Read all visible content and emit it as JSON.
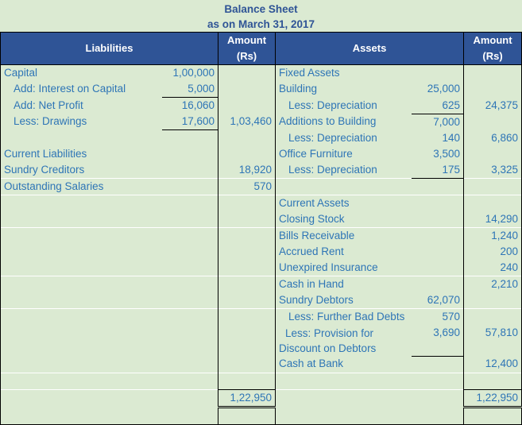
{
  "title": "Balance Sheet",
  "subtitle": "as on March 31, 2017",
  "headers": {
    "liabilities": "Liabilities",
    "liab_amount": [
      "Amount",
      "(Rs)"
    ],
    "assets": "Assets",
    "asset_amount": [
      "Amount",
      "(Rs)"
    ]
  },
  "rows": [
    {
      "l": "Capital",
      "ls": "1,00,000",
      "la": "",
      "a": "Fixed Assets",
      "as": "",
      "aa": ""
    },
    {
      "l": "Add: Interest on Capital",
      "li": true,
      "ls": "5,000",
      "la": "",
      "a": "Building",
      "as": "25,000",
      "aa": ""
    },
    {
      "l": "Add: Net Profit",
      "li": true,
      "ls": "16,060",
      "la": "",
      "a": "Less: Depreciation",
      "ai": true,
      "as": "625",
      "aa": "24,375"
    },
    {
      "l": "Less: Drawings",
      "li": true,
      "ls": "17,600",
      "la": "1,03,460",
      "a": "Additions to Building",
      "as": "7,000",
      "aa": ""
    },
    {
      "l": "",
      "ls": "",
      "la": "",
      "a": "Less: Depreciation",
      "ai": true,
      "as": "140",
      "aa": "6,860"
    },
    {
      "l": "Current Liabilities",
      "ls": "",
      "la": "",
      "a": "Office Furniture",
      "as": "3,500",
      "aa": ""
    },
    {
      "l": "Sundry Creditors",
      "ls": "",
      "la": "18,920",
      "a": "Less: Depreciation",
      "ai": true,
      "as": "175",
      "aa": "3,325"
    },
    {
      "l": "Outstanding Salaries",
      "ls": "",
      "la": "570",
      "a": "",
      "as": "",
      "aa": ""
    },
    {
      "l": "",
      "ls": "",
      "la": "",
      "a": "Current Assets",
      "as": "",
      "aa": ""
    },
    {
      "l": "",
      "ls": "",
      "la": "",
      "a": "Closing Stock",
      "as": "",
      "aa": "14,290"
    },
    {
      "l": "",
      "ls": "",
      "la": "",
      "a": "Bills Receivable",
      "as": "",
      "aa": "1,240"
    },
    {
      "l": "",
      "ls": "",
      "la": "",
      "a": "Accrued Rent",
      "as": "",
      "aa": "200"
    },
    {
      "l": "",
      "ls": "",
      "la": "",
      "a": "Unexpired Insurance",
      "as": "",
      "aa": "240"
    },
    {
      "l": "",
      "ls": "",
      "la": "",
      "a": "Cash in Hand",
      "as": "",
      "aa": "2,210"
    },
    {
      "l": "",
      "ls": "",
      "la": "",
      "a": "Sundry Debtors",
      "as": "62,070",
      "aa": ""
    },
    {
      "l": "",
      "ls": "",
      "la": "",
      "a": "Less: Further Bad Debts",
      "ai": true,
      "as": "570",
      "aa": ""
    },
    {
      "l": "",
      "ls": "",
      "la": "",
      "a2": [
        "Less: Provision for",
        "Discount on Debtors"
      ],
      "as": "3,690",
      "aa": "57,810"
    },
    {
      "l": "",
      "ls": "",
      "la": "",
      "a": "Cash at Bank",
      "as": "",
      "aa": "12,400"
    },
    {
      "l": "",
      "ls": "",
      "la": "",
      "a": "",
      "as": "",
      "aa": ""
    }
  ],
  "totals": {
    "liabilities": "1,22,950",
    "assets": "1,22,950"
  }
}
